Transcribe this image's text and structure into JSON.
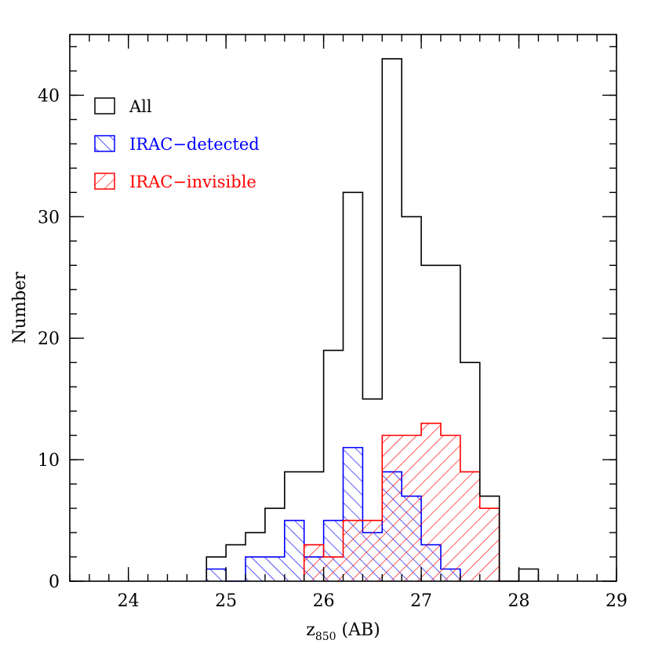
{
  "chart_data": {
    "type": "histogram",
    "xlabel": "z",
    "xlabel_sub": "850",
    "xlabel_suffix": " (AB)",
    "ylabel": "Number",
    "xlim": [
      23.4,
      29.0
    ],
    "ylim": [
      0,
      45
    ],
    "bin_width": 0.2,
    "x_ticks": [
      24,
      25,
      26,
      27,
      28,
      29
    ],
    "y_ticks": [
      0,
      10,
      20,
      30,
      40
    ],
    "x_minor_step": 0.2,
    "y_minor_step": 2,
    "legend_position": "top-left",
    "series": [
      {
        "name": "All",
        "color": "#000000",
        "fill": "none",
        "bin_edges": [
          24.8,
          25.0,
          25.2,
          25.4,
          25.6,
          25.8,
          26.0,
          26.2,
          26.4,
          26.6,
          26.8,
          27.0,
          27.2,
          27.4,
          27.6,
          27.8,
          28.0,
          28.2
        ],
        "counts": [
          2,
          3,
          4,
          6,
          9,
          9,
          19,
          32,
          15,
          43,
          30,
          26,
          26,
          18,
          7,
          0,
          1
        ]
      },
      {
        "name": "IRAC−detected",
        "color": "#0000ff",
        "fill": "hatch-backslash",
        "bin_edges": [
          24.8,
          25.0,
          25.2,
          25.4,
          25.6,
          25.8,
          26.0,
          26.2,
          26.4,
          26.6,
          26.8,
          27.0,
          27.2,
          27.4
        ],
        "counts": [
          1,
          0,
          2,
          2,
          5,
          2,
          5,
          11,
          4,
          9,
          7,
          3,
          1
        ]
      },
      {
        "name": "IRAC−invisible",
        "color": "#ff0000",
        "fill": "hatch-slash",
        "bin_edges": [
          25.8,
          26.0,
          26.2,
          26.4,
          26.6,
          26.8,
          27.0,
          27.2,
          27.4,
          27.6,
          27.8
        ],
        "counts": [
          3,
          2,
          5,
          5,
          12,
          12,
          13,
          12,
          9,
          6
        ]
      }
    ]
  }
}
